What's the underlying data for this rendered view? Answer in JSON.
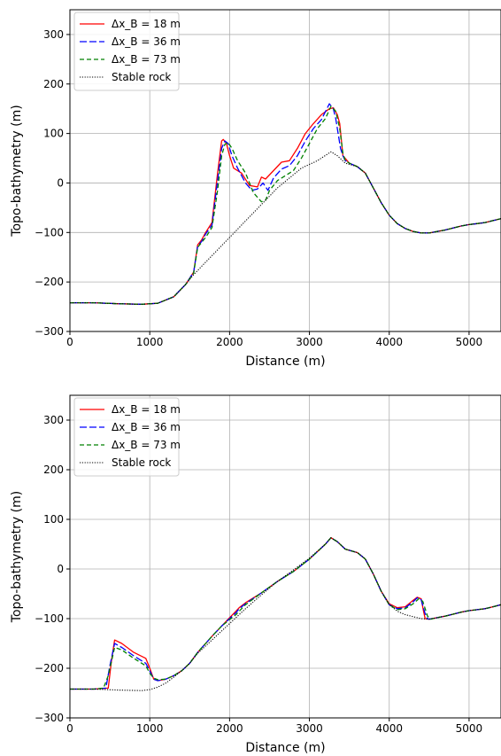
{
  "chart_data": [
    {
      "type": "line",
      "xlabel": "Distance (m)",
      "ylabel": "Topo-bathymetry (m)",
      "xlim": [
        0,
        5400
      ],
      "ylim": [
        -300,
        350
      ],
      "xticks": [
        "0",
        "1000",
        "2000",
        "3000",
        "4000",
        "5000"
      ],
      "xtick_values": [
        0,
        1000,
        2000,
        3000,
        4000,
        5000
      ],
      "yticks": [
        "−300",
        "−200",
        "−100",
        "0",
        "100",
        "200",
        "300"
      ],
      "ytick_values": [
        -300,
        -200,
        -100,
        0,
        100,
        200,
        300
      ],
      "grid": true,
      "legend_position": "top-left",
      "series": [
        {
          "name": "Δx_B = 18 m",
          "color": "#ff0000",
          "dash": "solid",
          "x": [
            0,
            300,
            600,
            900,
            1100,
            1300,
            1450,
            1550,
            1600,
            1650,
            1700,
            1780,
            1850,
            1900,
            1920,
            1960,
            2000,
            2050,
            2150,
            2250,
            2350,
            2400,
            2450,
            2550,
            2650,
            2750,
            2850,
            2950,
            3050,
            3150,
            3250,
            3300,
            3350,
            3380,
            3420,
            3500,
            3600,
            3700,
            3800,
            3900,
            4000,
            4100,
            4200,
            4300,
            4400,
            4500,
            4600,
            4700,
            4800,
            4900,
            5000,
            5100,
            5200,
            5300,
            5400
          ],
          "y": [
            -242,
            -242,
            -244,
            -245,
            -243,
            -230,
            -205,
            -180,
            -125,
            -115,
            -100,
            -80,
            20,
            85,
            88,
            80,
            55,
            30,
            20,
            -5,
            -8,
            12,
            8,
            25,
            42,
            45,
            70,
            100,
            120,
            138,
            150,
            152,
            138,
            120,
            55,
            40,
            33,
            20,
            -10,
            -40,
            -65,
            -82,
            -92,
            -98,
            -101,
            -101,
            -98,
            -95,
            -91,
            -87,
            -84,
            -82,
            -80,
            -76,
            -72
          ]
        },
        {
          "name": "Δx_B = 36 m",
          "color": "#0000ff",
          "dash": "dashed-long",
          "x": [
            0,
            300,
            600,
            900,
            1100,
            1300,
            1450,
            1550,
            1600,
            1650,
            1700,
            1780,
            1850,
            1900,
            1940,
            1980,
            2030,
            2100,
            2200,
            2280,
            2350,
            2420,
            2480,
            2550,
            2650,
            2750,
            2850,
            2950,
            3050,
            3150,
            3250,
            3300,
            3330,
            3360,
            3390,
            3420,
            3450,
            3500,
            3600,
            3700,
            3800,
            3900,
            4000,
            4100,
            4200,
            4300,
            4400,
            4500,
            4600,
            4700,
            4800,
            4900,
            5000,
            5100,
            5200,
            5300,
            5400
          ],
          "y": [
            -242,
            -242,
            -244,
            -245,
            -243,
            -230,
            -205,
            -180,
            -128,
            -118,
            -103,
            -85,
            5,
            70,
            85,
            80,
            55,
            30,
            0,
            -15,
            -12,
            0,
            -15,
            10,
            28,
            35,
            55,
            85,
            110,
            128,
            160,
            150,
            130,
            100,
            70,
            55,
            45,
            40,
            33,
            20,
            -10,
            -40,
            -65,
            -82,
            -92,
            -98,
            -101,
            -101,
            -98,
            -95,
            -91,
            -87,
            -84,
            -82,
            -80,
            -76,
            -72
          ]
        },
        {
          "name": "Δx_B = 73 m",
          "color": "#008000",
          "dash": "dashed",
          "x": [
            0,
            300,
            600,
            900,
            1100,
            1300,
            1450,
            1550,
            1600,
            1650,
            1700,
            1780,
            1850,
            1900,
            1940,
            1980,
            2030,
            2100,
            2200,
            2300,
            2400,
            2450,
            2500,
            2600,
            2700,
            2800,
            2900,
            3000,
            3100,
            3200,
            3270,
            3330,
            3380,
            3420,
            3450,
            3500,
            3600,
            3700,
            3800,
            3900,
            4000,
            4100,
            4200,
            4300,
            4400,
            4500,
            4600,
            4700,
            4800,
            4900,
            5000,
            5100,
            5200,
            5300,
            5400
          ],
          "y": [
            -242,
            -242,
            -244,
            -245,
            -243,
            -230,
            -205,
            -182,
            -130,
            -120,
            -110,
            -90,
            -15,
            55,
            78,
            82,
            70,
            45,
            20,
            -20,
            -38,
            -35,
            -15,
            5,
            15,
            25,
            50,
            80,
            110,
            130,
            155,
            145,
            110,
            60,
            45,
            40,
            33,
            20,
            -10,
            -40,
            -65,
            -82,
            -92,
            -98,
            -101,
            -101,
            -98,
            -95,
            -91,
            -87,
            -84,
            -82,
            -80,
            -76,
            -72
          ]
        },
        {
          "name": "Stable rock",
          "color": "#000000",
          "dash": "dotted",
          "x": [
            0,
            300,
            600,
            900,
            1100,
            1300,
            1450,
            1550,
            1700,
            2000,
            2300,
            2600,
            2900,
            3100,
            3270,
            3350,
            3450,
            3600,
            3700,
            3800,
            3900,
            4000,
            4100,
            4200,
            4300,
            4400,
            4500,
            4600,
            4700,
            4800,
            4900,
            5000,
            5100,
            5200,
            5300,
            5400
          ],
          "y": [
            -242,
            -242,
            -244,
            -245,
            -243,
            -230,
            -205,
            -185,
            -160,
            -110,
            -60,
            -10,
            30,
            45,
            63,
            55,
            40,
            33,
            20,
            -10,
            -40,
            -65,
            -82,
            -92,
            -98,
            -101,
            -101,
            -98,
            -95,
            -91,
            -87,
            -84,
            -82,
            -80,
            -76,
            -72
          ]
        }
      ]
    },
    {
      "type": "line",
      "xlabel": "Distance (m)",
      "ylabel": "Topo-bathymetry (m)",
      "xlim": [
        0,
        5400
      ],
      "ylim": [
        -300,
        350
      ],
      "xticks": [
        "0",
        "1000",
        "2000",
        "3000",
        "4000",
        "5000"
      ],
      "xtick_values": [
        0,
        1000,
        2000,
        3000,
        4000,
        5000
      ],
      "yticks": [
        "−300",
        "−200",
        "−100",
        "0",
        "100",
        "200",
        "300"
      ],
      "ytick_values": [
        -300,
        -200,
        -100,
        0,
        100,
        200,
        300
      ],
      "grid": true,
      "legend_position": "top-left",
      "series": [
        {
          "name": "Δx_B = 18 m",
          "color": "#ff0000",
          "dash": "solid",
          "x": [
            0,
            300,
            480,
            520,
            560,
            650,
            800,
            950,
            1000,
            1050,
            1100,
            1200,
            1300,
            1400,
            1500,
            1600,
            1700,
            1800,
            1900,
            2000,
            2080,
            2120,
            2200,
            2400,
            2600,
            2800,
            3000,
            3200,
            3270,
            3350,
            3450,
            3600,
            3700,
            3800,
            3900,
            4000,
            4100,
            4200,
            4300,
            4350,
            4400,
            4430,
            4450,
            4500,
            4600,
            4700,
            4800,
            4900,
            5000,
            5100,
            5200,
            5300,
            5400
          ],
          "y": [
            -242,
            -242,
            -240,
            -185,
            -143,
            -150,
            -168,
            -180,
            -200,
            -222,
            -225,
            -222,
            -215,
            -205,
            -190,
            -168,
            -150,
            -132,
            -115,
            -98,
            -85,
            -78,
            -68,
            -48,
            -25,
            -5,
            20,
            50,
            63,
            55,
            40,
            33,
            20,
            -10,
            -45,
            -70,
            -78,
            -76,
            -63,
            -57,
            -60,
            -85,
            -100,
            -101,
            -98,
            -95,
            -91,
            -87,
            -84,
            -82,
            -80,
            -76,
            -72
          ]
        },
        {
          "name": "Δx_B = 36 m",
          "color": "#0000ff",
          "dash": "dashed-long",
          "x": [
            0,
            300,
            450,
            500,
            560,
            650,
            800,
            950,
            1000,
            1050,
            1100,
            1200,
            1300,
            1400,
            1500,
            1600,
            1700,
            1800,
            1900,
            2000,
            2080,
            2120,
            2200,
            2400,
            2600,
            2800,
            3000,
            3200,
            3270,
            3350,
            3450,
            3600,
            3700,
            3800,
            3900,
            4000,
            4100,
            4200,
            4300,
            4350,
            4400,
            4450,
            4480,
            4500,
            4600,
            4700,
            4800,
            4900,
            5000,
            5100,
            5200,
            5300,
            5400
          ],
          "y": [
            -242,
            -242,
            -240,
            -195,
            -150,
            -158,
            -175,
            -190,
            -205,
            -222,
            -225,
            -222,
            -215,
            -205,
            -190,
            -168,
            -150,
            -132,
            -115,
            -100,
            -88,
            -80,
            -70,
            -48,
            -25,
            -5,
            20,
            50,
            63,
            55,
            40,
            33,
            20,
            -10,
            -45,
            -72,
            -80,
            -78,
            -66,
            -58,
            -62,
            -90,
            -100,
            -101,
            -98,
            -95,
            -91,
            -87,
            -84,
            -82,
            -80,
            -76,
            -72
          ]
        },
        {
          "name": "Δx_B = 73 m",
          "color": "#008000",
          "dash": "dashed",
          "x": [
            0,
            300,
            420,
            480,
            560,
            650,
            800,
            950,
            1000,
            1050,
            1100,
            1200,
            1300,
            1400,
            1500,
            1600,
            1700,
            1800,
            1900,
            2000,
            2080,
            2120,
            2200,
            2400,
            2600,
            2800,
            3000,
            3200,
            3270,
            3350,
            3450,
            3600,
            3700,
            3800,
            3900,
            4000,
            4100,
            4200,
            4300,
            4370,
            4420,
            4480,
            4520,
            4600,
            4700,
            4800,
            4900,
            5000,
            5100,
            5200,
            5300,
            5400
          ],
          "y": [
            -242,
            -242,
            -240,
            -215,
            -158,
            -163,
            -180,
            -195,
            -210,
            -220,
            -223,
            -222,
            -215,
            -205,
            -190,
            -168,
            -150,
            -132,
            -115,
            -102,
            -92,
            -85,
            -72,
            -48,
            -25,
            -5,
            20,
            50,
            63,
            55,
            40,
            33,
            20,
            -10,
            -45,
            -72,
            -82,
            -80,
            -70,
            -60,
            -65,
            -95,
            -101,
            -98,
            -95,
            -91,
            -87,
            -84,
            -82,
            -80,
            -76,
            -72
          ]
        },
        {
          "name": "Stable rock",
          "color": "#000000",
          "dash": "dotted",
          "x": [
            0,
            300,
            600,
            900,
            1000,
            1100,
            1200,
            1300,
            1400,
            1500,
            1600,
            1800,
            2000,
            2200,
            2400,
            2600,
            2800,
            3000,
            3200,
            3270,
            3350,
            3450,
            3600,
            3700,
            3800,
            3900,
            4000,
            4100,
            4200,
            4300,
            4400,
            4500,
            4600,
            4700,
            4800,
            4900,
            5000,
            5100,
            5200,
            5300,
            5400
          ],
          "y": [
            -242,
            -242,
            -244,
            -245,
            -243,
            -238,
            -230,
            -218,
            -205,
            -190,
            -170,
            -140,
            -110,
            -80,
            -52,
            -25,
            -2,
            22,
            50,
            63,
            55,
            40,
            33,
            20,
            -10,
            -45,
            -72,
            -85,
            -92,
            -96,
            -100,
            -101,
            -98,
            -95,
            -91,
            -87,
            -84,
            -82,
            -80,
            -76,
            -72
          ]
        }
      ]
    }
  ]
}
